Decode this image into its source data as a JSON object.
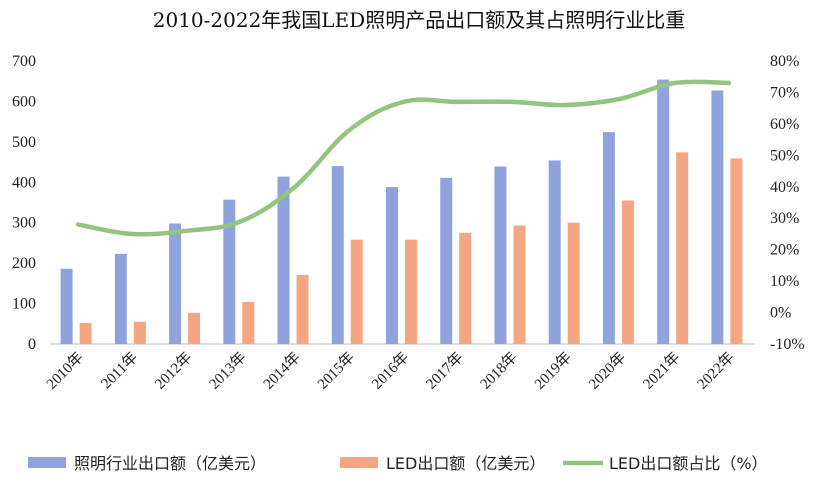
{
  "chart_data": {
    "type": "bar",
    "title": "2010-2022年我国LED照明产品出口额及其占照明行业比重",
    "categories": [
      "2010年",
      "2011年",
      "2012年",
      "2013年",
      "2014年",
      "2015年",
      "2016年",
      "2017年",
      "2018年",
      "2019年",
      "2020年",
      "2021年",
      "2022年"
    ],
    "series": [
      {
        "name": "照明行业出口额（亿美元）",
        "type": "bar",
        "axis": "left",
        "color": "#8FA2DC",
        "values": [
          186,
          223,
          298,
          357,
          414,
          440,
          388,
          411,
          439,
          454,
          524,
          654,
          627
        ]
      },
      {
        "name": "LED出口额（亿美元）",
        "type": "bar",
        "axis": "left",
        "color": "#F4A582",
        "values": [
          52,
          55,
          77,
          104,
          171,
          258,
          258,
          275,
          293,
          300,
          355,
          474,
          459
        ]
      },
      {
        "name": "LED出口额占比（%）",
        "type": "line",
        "axis": "right",
        "color": "#94C47D",
        "values": [
          28,
          25,
          26,
          29,
          40,
          58,
          67,
          67,
          67,
          66,
          68,
          73,
          73
        ]
      }
    ],
    "y_left": {
      "min": 0,
      "max": 700,
      "step": 100,
      "ticks": [
        "0",
        "100",
        "200",
        "300",
        "400",
        "500",
        "600",
        "700"
      ]
    },
    "y_right": {
      "min": -10,
      "max": 80,
      "step": 10,
      "ticks": [
        "-10%",
        "0%",
        "10%",
        "20%",
        "30%",
        "40%",
        "50%",
        "60%",
        "70%",
        "80%"
      ]
    },
    "legend_position": "bottom",
    "grid": false
  }
}
